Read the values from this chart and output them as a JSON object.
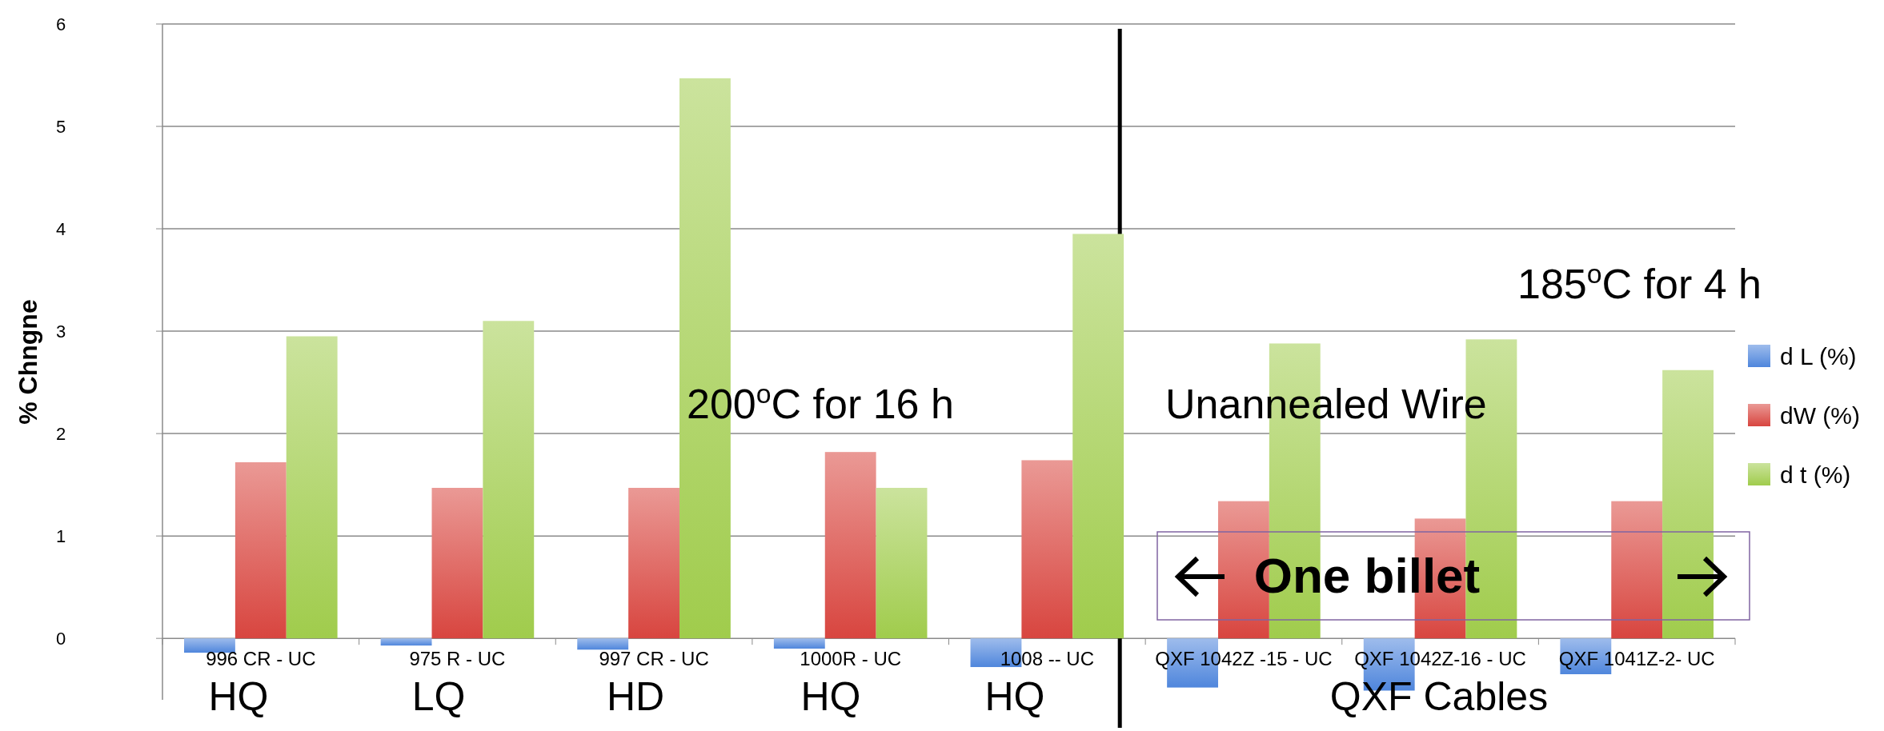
{
  "chart_data": {
    "type": "bar",
    "ylabel": "% Chngne",
    "categories": [
      "996 CR - UC",
      "975 R - UC",
      "997 CR - UC",
      "1000R - UC",
      "1008 -- UC",
      "QXF 1042Z -15 - UC",
      "QXF 1042Z-16 - UC",
      "QXF 1041Z-2- UC"
    ],
    "series": [
      {
        "name": "d L (%)",
        "color": "#4f86dc",
        "values": [
          -0.14,
          -0.07,
          -0.11,
          -0.1,
          -0.28,
          -0.48,
          -0.51,
          -0.35
        ]
      },
      {
        "name": "dW (%)",
        "color": "#d8453f",
        "values": [
          1.72,
          1.47,
          1.47,
          1.82,
          1.74,
          1.34,
          1.17,
          1.34
        ]
      },
      {
        "name": "d t (%)",
        "color": "#a0cc4c",
        "values": [
          2.95,
          3.1,
          5.47,
          1.47,
          3.95,
          2.88,
          2.92,
          2.62
        ]
      }
    ],
    "ylim": [
      -0.6,
      6
    ],
    "yticks": [
      0,
      1,
      2,
      3,
      4,
      5,
      6
    ],
    "grid": "y",
    "legend": "right",
    "annotations": [
      "HQ",
      "LQ",
      "HD",
      "HQ",
      "HQ",
      "QXF Cables",
      "200$^{o}$C for 16 h",
      "Unannealed Wire",
      "185$^{o}$C for 4 h",
      "One billet"
    ]
  }
}
